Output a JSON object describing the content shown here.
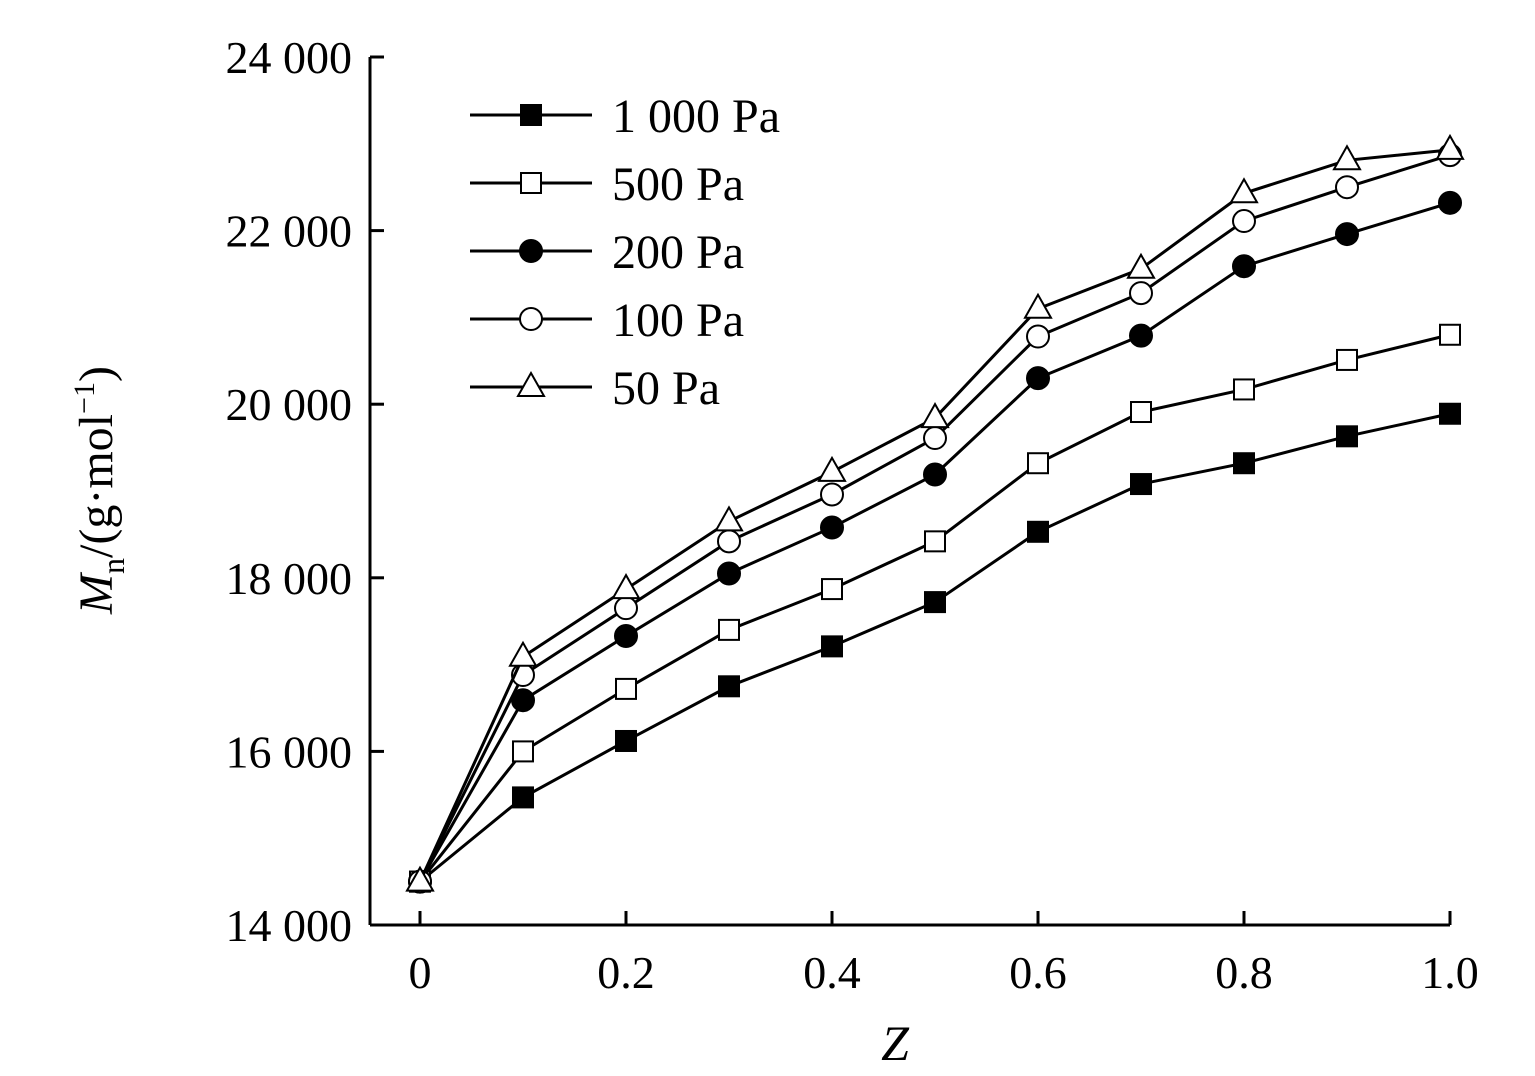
{
  "chart_data": {
    "type": "line",
    "title": "",
    "xlabel": "Z",
    "ylabel_main": "M",
    "ylabel_sub": "n",
    "ylabel_unit": "/(g·mol",
    "ylabel_sup": "−1",
    "ylabel_close": ")",
    "xlim": [
      0,
      1.0
    ],
    "ylim": [
      14000,
      24000
    ],
    "x_ticks": [
      0,
      0.2,
      0.4,
      0.6,
      0.8,
      1.0
    ],
    "x_tick_labels": [
      "0",
      "0.2",
      "0.4",
      "0.6",
      "0.8",
      "1.0"
    ],
    "y_ticks": [
      14000,
      16000,
      18000,
      20000,
      22000,
      24000
    ],
    "y_tick_labels": [
      "14 000",
      "16 000",
      "18 000",
      "20 000",
      "22 000",
      "24 000"
    ],
    "grid": false,
    "legend_position": "top-left",
    "x": [
      0,
      0.1,
      0.2,
      0.3,
      0.4,
      0.5,
      0.6,
      0.7,
      0.8,
      0.9,
      1.0
    ],
    "series": [
      {
        "name": "1 000 Pa",
        "marker": "filled-square",
        "values": [
          14500,
          15470,
          16120,
          16750,
          17210,
          17720,
          18530,
          19080,
          19320,
          19630,
          19890
        ]
      },
      {
        "name": "500 Pa",
        "marker": "open-square",
        "values": [
          14500,
          16000,
          16720,
          17400,
          17870,
          18420,
          19320,
          19910,
          20170,
          20510,
          20800
        ]
      },
      {
        "name": "200 Pa",
        "marker": "filled-circle",
        "values": [
          14500,
          16590,
          17330,
          18050,
          18580,
          19190,
          20300,
          20790,
          21590,
          21960,
          22320
        ]
      },
      {
        "name": "100 Pa",
        "marker": "open-circle",
        "values": [
          14500,
          16880,
          17650,
          18420,
          18960,
          19610,
          20780,
          21280,
          22110,
          22500,
          22870
        ]
      },
      {
        "name": "50 Pa",
        "marker": "open-triangle",
        "values": [
          14500,
          17090,
          17870,
          18650,
          19220,
          19840,
          21100,
          21560,
          22430,
          22810,
          22930
        ]
      }
    ]
  }
}
